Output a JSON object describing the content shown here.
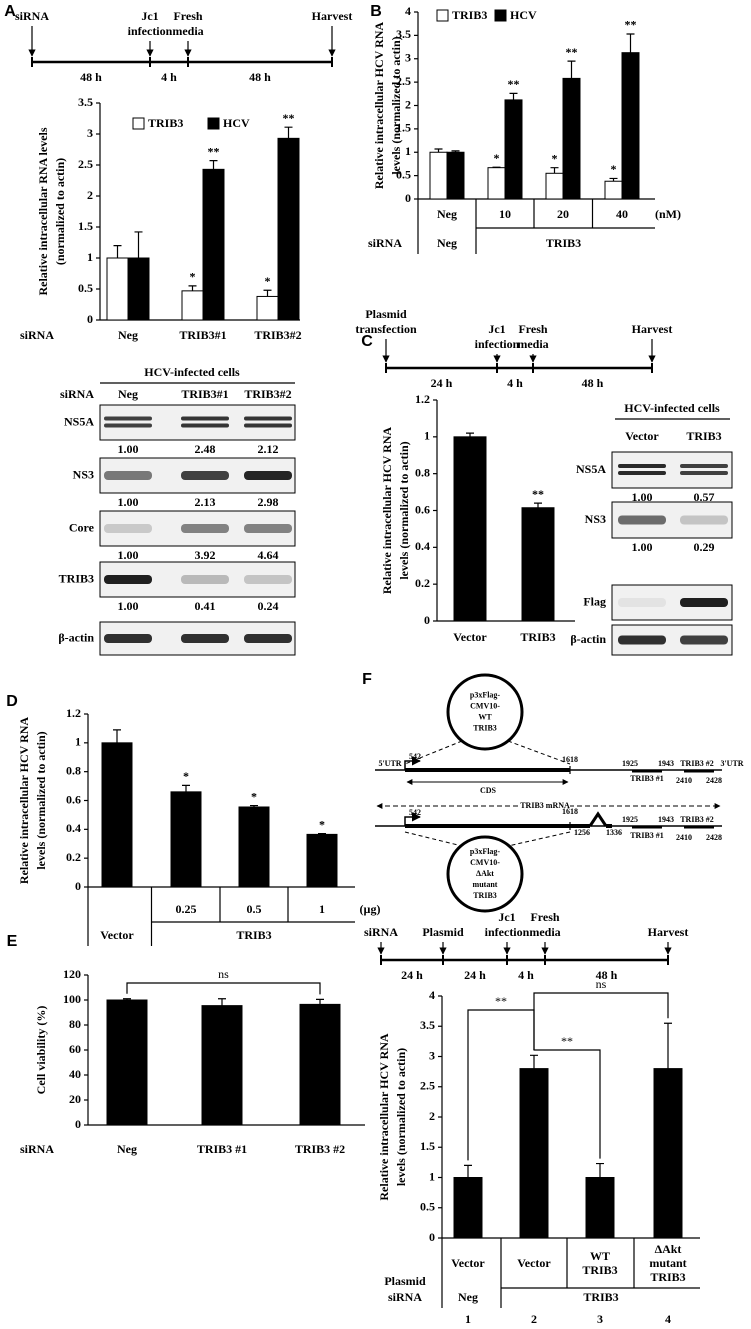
{
  "panels": [
    "A",
    "B",
    "C",
    "D",
    "E",
    "F"
  ],
  "timelines": [
    {
      "events": [
        [
          "siRNA"
        ],
        [
          "Jc1",
          "infection"
        ],
        [
          "Fresh",
          "media"
        ],
        [
          "Harvest"
        ]
      ],
      "intervals": [
        "48 h",
        "4 h",
        "48 h"
      ]
    },
    {
      "events": [
        [
          "Plasmid",
          "transfection"
        ],
        [
          "Jc1",
          "infection"
        ],
        [
          "Fresh",
          "media"
        ],
        [
          "Harvest"
        ]
      ],
      "intervals": [
        "24 h",
        "4 h",
        "48 h"
      ]
    },
    {
      "events": [
        [
          "siRNA"
        ],
        [
          "Plasmid"
        ],
        [
          "Jc1",
          "infection"
        ],
        [
          "Fresh",
          "media"
        ],
        [
          "Harvest"
        ]
      ],
      "intervals": [
        "24 h",
        "24 h",
        "4 h",
        "48 h"
      ]
    }
  ],
  "chart_data": [
    {
      "type": "bar",
      "y_label": [
        "Relative intracellular RNA levels",
        "(normalized to actin)"
      ],
      "categories": [
        "Neg",
        "TRIB3#1",
        "TRIB3#2"
      ],
      "category_row_label": "siRNA",
      "legend": true,
      "series": [
        {
          "name": "TRIB3",
          "color": "#ffffff",
          "values": [
            1,
            0.47,
            0.38
          ],
          "errors": [
            0.2,
            0.08,
            0.1
          ],
          "annotations": [
            null,
            "*",
            "*"
          ]
        },
        {
          "name": "HCV",
          "color": "#000000",
          "values": [
            1,
            2.43,
            2.93
          ],
          "errors": [
            0.42,
            0.14,
            0.18
          ],
          "annotations": [
            null,
            "**",
            "**"
          ]
        }
      ],
      "ylim": [
        0,
        3.5
      ],
      "yticks": [
        0,
        0.5,
        1,
        1.5,
        2,
        2.5,
        3,
        3.5
      ]
    },
    {
      "type": "bar",
      "y_label": [
        "Relative intracellular HCV RNA",
        "levels (normalized to actin)"
      ],
      "categories": [
        "Neg",
        "10",
        "20",
        "40"
      ],
      "unit": "(nM)",
      "legend": true,
      "group_row": {
        "label": "siRNA",
        "groups": [
          {
            "text": "Neg",
            "span": [
              0,
              0
            ]
          },
          {
            "text": "TRIB3",
            "span": [
              1,
              3
            ]
          }
        ]
      },
      "series": [
        {
          "name": "TRIB3",
          "color": "#ffffff",
          "values": [
            1,
            0.67,
            0.55,
            0.38
          ],
          "errors": [
            0.07,
            0.01,
            0.12,
            0.06
          ],
          "annotations": [
            null,
            "*",
            "*",
            "*"
          ]
        },
        {
          "name": "HCV",
          "color": "#000000",
          "values": [
            1,
            2.12,
            2.58,
            3.13
          ],
          "errors": [
            0.03,
            0.14,
            0.37,
            0.4
          ],
          "annotations": [
            null,
            "**",
            "**",
            "**"
          ]
        }
      ],
      "ylim": [
        0,
        4
      ],
      "yticks": [
        0,
        0.5,
        1,
        1.5,
        2,
        2.5,
        3,
        3.5,
        4
      ]
    },
    {
      "type": "bar",
      "y_label": [
        "Relative intracellular HCV RNA",
        "levels (normalized to actin)"
      ],
      "categories": [
        "Vector",
        "TRIB3"
      ],
      "series": [
        {
          "color": "#000000",
          "values": [
            1,
            0.615
          ],
          "errors": [
            0.02,
            0.025
          ],
          "annotations": [
            null,
            "**"
          ]
        }
      ],
      "ylim": [
        0,
        1.2
      ],
      "yticks": [
        0,
        0.2,
        0.4,
        0.6,
        0.8,
        1,
        1.2
      ]
    },
    {
      "type": "bar",
      "y_label": [
        "Relative intracellular HCV RNA",
        "levels (normalized to actin)"
      ],
      "categories": [
        null,
        "0.25",
        "0.5",
        "1"
      ],
      "unit": "(µg)",
      "group_row": {
        "groups": [
          {
            "text": "Vector",
            "span": [
              0,
              0
            ]
          },
          {
            "text": "TRIB3",
            "span": [
              1,
              3
            ]
          }
        ]
      },
      "series": [
        {
          "color": "#000000",
          "values": [
            1,
            0.66,
            0.555,
            0.365
          ],
          "errors": [
            0.09,
            0.045,
            0.01,
            0.005
          ],
          "annotations": [
            null,
            "*",
            "*",
            "*"
          ]
        }
      ],
      "ylim": [
        0,
        1.2
      ],
      "yticks": [
        0,
        0.2,
        0.4,
        0.6,
        0.8,
        1,
        1.2
      ]
    },
    {
      "type": "bar",
      "y_label": [
        "Cell viability (%)"
      ],
      "categories": [
        "Neg",
        "TRIB3 #1",
        "TRIB3 #2"
      ],
      "category_row_label": "siRNA",
      "series": [
        {
          "color": "#000000",
          "values": [
            100,
            95.5,
            96.5
          ],
          "errors": [
            1,
            5.5,
            4
          ]
        }
      ],
      "brackets": [
        {
          "text": "ns",
          "from": 0,
          "to": 2
        }
      ],
      "ylim": [
        0,
        120
      ],
      "yticks": [
        0,
        20,
        40,
        60,
        80,
        100,
        120
      ]
    },
    {
      "type": "bar",
      "y_label": [
        "Relative intracellular HCV RNA",
        "levels (normalized to actin)"
      ],
      "categories": [
        "Vector",
        "Vector",
        [
          "WT",
          "TRIB3"
        ],
        [
          "ΔAkt",
          "mutant",
          "TRIB3"
        ]
      ],
      "category_row_label": "Plasmid",
      "group_row": {
        "label": "siRNA",
        "groups": [
          {
            "text": "Neg",
            "span": [
              0,
              0
            ]
          },
          {
            "text": "TRIB3",
            "span": [
              1,
              3
            ]
          }
        ]
      },
      "lane_numbers": [
        1,
        2,
        3,
        4
      ],
      "series": [
        {
          "color": "#000000",
          "values": [
            1,
            2.8,
            1,
            2.8
          ],
          "errors": [
            0.2,
            0.22,
            0.23,
            0.75
          ]
        }
      ],
      "brackets": [
        {
          "text": "**",
          "from": 0,
          "to": 1
        },
        {
          "text": "**",
          "from": 1,
          "to": 2
        },
        {
          "text": "ns",
          "from": 1,
          "to": 3
        }
      ],
      "ylim": [
        0,
        4
      ],
      "yticks": [
        0,
        0.5,
        1,
        1.5,
        2,
        2.5,
        3,
        3.5,
        4
      ]
    }
  ],
  "blots": [
    {
      "title": "HCV-infected cells",
      "header_label": "siRNA",
      "lanes": [
        "Neg",
        "TRIB3#1",
        "TRIB3#2"
      ],
      "rows": [
        {
          "name": "NS5A",
          "quant": [
            "1.00",
            "2.48",
            "2.12"
          ]
        },
        {
          "name": "NS3",
          "quant": [
            "1.00",
            "2.13",
            "2.98"
          ]
        },
        {
          "name": "Core",
          "quant": [
            "1.00",
            "3.92",
            "4.64"
          ]
        },
        {
          "name": "TRIB3",
          "quant": [
            "1.00",
            "0.41",
            "0.24"
          ]
        },
        {
          "name": "β-actin"
        }
      ]
    },
    {
      "title": "HCV-infected cells",
      "lanes": [
        "Vector",
        "TRIB3"
      ],
      "rows": [
        {
          "name": "NS5A",
          "quant": [
            "1.00",
            "0.57"
          ]
        },
        {
          "name": "NS3",
          "quant": [
            "1.00",
            "0.29"
          ]
        },
        {
          "name": "Flag"
        },
        {
          "name": "β-actin"
        }
      ]
    }
  ],
  "schematic": {
    "top_plasmid": [
      "p3xFlag-",
      "CMV10-",
      "WT",
      "TRIB3"
    ],
    "bottom_plasmid": [
      "p3xFlag-",
      "CMV10-",
      "ΔAkt",
      "mutant",
      "TRIB3"
    ],
    "top_labels": [
      "5'UTR",
      "542",
      "1618",
      "1925",
      "1943",
      "TRIB3 #2",
      "3'UTR",
      "CDS",
      "TRIB3 #1",
      "2410",
      "2428"
    ],
    "mrna_label": "TRIB3 mRNA",
    "bottom_labels": [
      "542",
      "1618",
      "1256",
      "1336",
      "1925",
      "1943",
      "TRIB3 #2",
      "TRIB3 #1",
      "2410",
      "2428"
    ]
  }
}
